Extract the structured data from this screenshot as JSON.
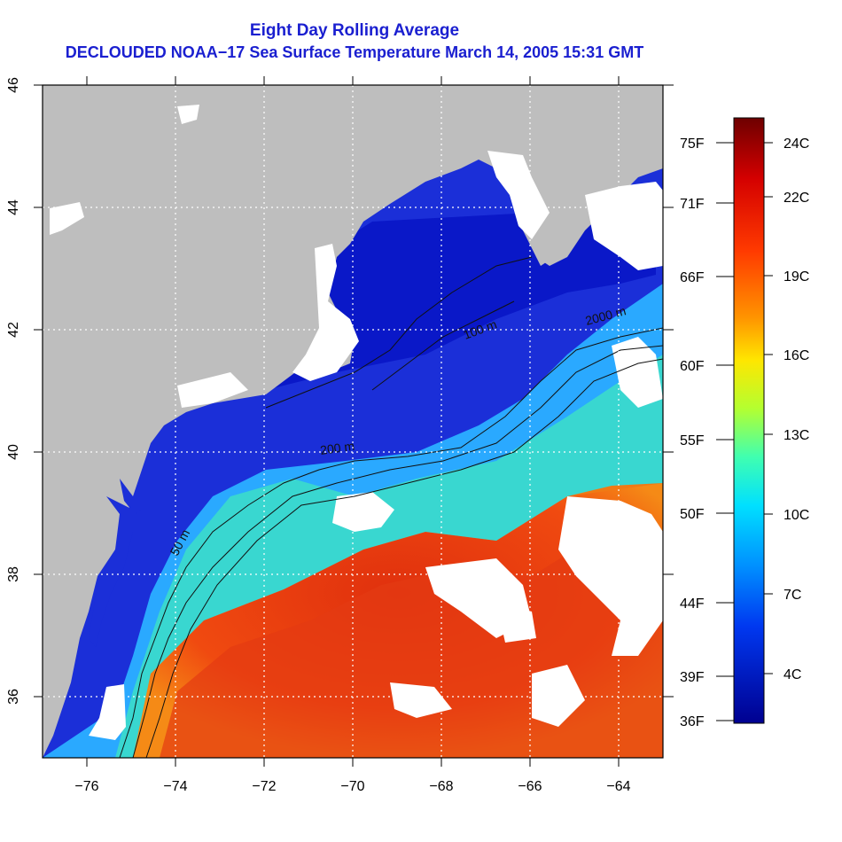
{
  "title": {
    "line1": "Eight Day Rolling Average",
    "line2": "DECLOUDED NOAA−17 Sea Surface Temperature March 14, 2005 15:31 GMT"
  },
  "axes": {
    "x_ticks": [
      "−76",
      "−74",
      "−72",
      "−70",
      "−68",
      "−66",
      "−64"
    ],
    "y_ticks": [
      "46",
      "44",
      "42",
      "40",
      "38",
      "36"
    ]
  },
  "contours": {
    "label_50m": "50 m",
    "label_200m": "200 m",
    "label_2000m": "2000 m",
    "label_100m": "100 m"
  },
  "colorbar": {
    "celsius_labels": [
      "24C",
      "22C",
      "19C",
      "16C",
      "13C",
      "10C",
      "7C",
      "4C"
    ],
    "fahrenheit_labels": [
      "75F",
      "71F",
      "66F",
      "60F",
      "55F",
      "50F",
      "44F",
      "39F",
      "36F"
    ],
    "colors": [
      "#7a0000",
      "#c80000",
      "#ff2a00",
      "#ff7a00",
      "#ffc400",
      "#f0ff00",
      "#8cff3c",
      "#2affd0",
      "#00c8ff",
      "#0070ff",
      "#0020e0",
      "#00008c"
    ]
  },
  "colors": {
    "land": "#bebebe",
    "cloud": "#ffffff",
    "title": "#1a1fd0",
    "cold_water": "#0a1fd0",
    "warm_water": "#e8301a"
  }
}
